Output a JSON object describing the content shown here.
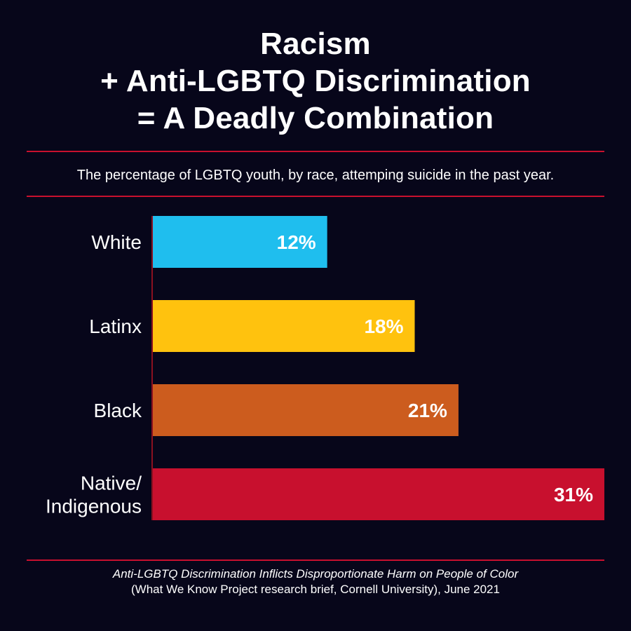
{
  "title_lines": [
    "Racism",
    "+ Anti-LGBTQ Discrimination",
    "= A Deadly Combination"
  ],
  "subtitle": "The percentage of LGBTQ youth, by race, attemping suicide in the past year.",
  "footer": {
    "source_title": "Anti-LGBTQ Discrimination Inflicts Disproportionate Harm on People of Color",
    "source_detail": "(What We Know Project research brief, Cornell University), June 2021"
  },
  "colors": {
    "background": "#07061a",
    "rule": "#c8102e",
    "axis": "#8a1020"
  },
  "chart_data": {
    "type": "bar",
    "orientation": "horizontal",
    "categories": [
      [
        "White"
      ],
      [
        "Latinx"
      ],
      [
        "Black"
      ],
      [
        "Native/",
        "Indigenous"
      ]
    ],
    "values": [
      12,
      18,
      21,
      31
    ],
    "value_labels": [
      "12%",
      "18%",
      "21%",
      "31%"
    ],
    "unit": "%",
    "bar_colors": [
      "#1fbeee",
      "#ffc20e",
      "#cc5c1e",
      "#c8102e"
    ],
    "xlim": [
      0,
      31
    ],
    "grid": false,
    "legend": "none"
  }
}
